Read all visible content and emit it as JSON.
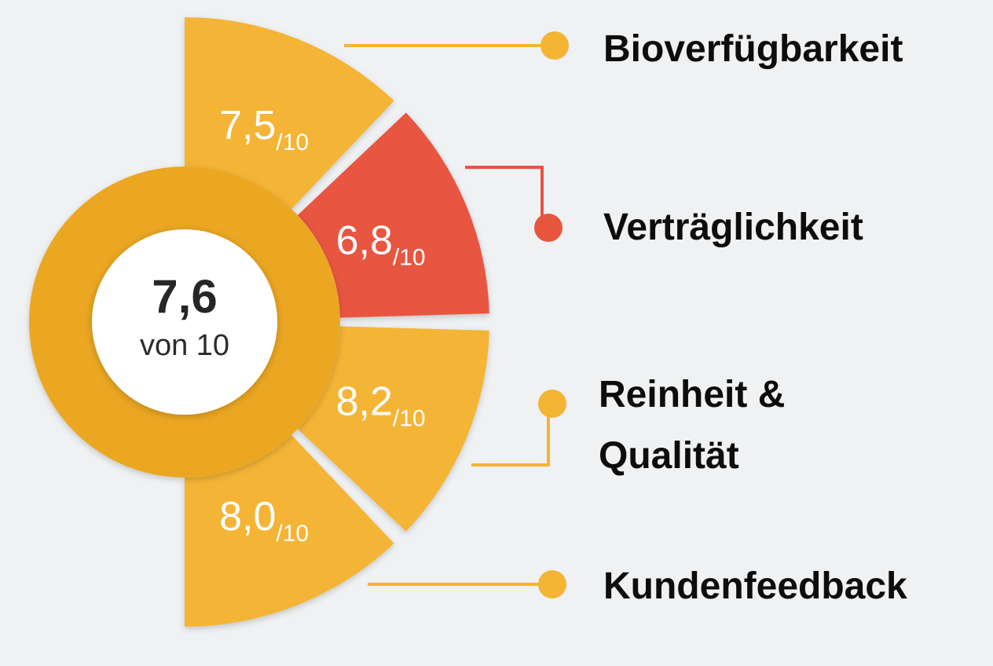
{
  "chart_data": {
    "type": "pie",
    "overall": {
      "value": "7,6",
      "subtitle": "von 10",
      "numeric": 7.6,
      "max": 10
    },
    "max_score": 10,
    "denominator_label": "/10",
    "segments": [
      {
        "category": "Bioverfügbarkeit",
        "value": 7.5,
        "value_label": "7,5",
        "color": "#f4b434"
      },
      {
        "category": "Verträglichkeit",
        "value": 6.8,
        "value_label": "6,8",
        "color": "#e8553f"
      },
      {
        "category": "Reinheit & Qualität",
        "label_lines": [
          "Reinheit &",
          "Qualität"
        ],
        "value": 8.2,
        "value_label": "8,2",
        "color": "#f4b434"
      },
      {
        "category": "Kundenfeedback",
        "value": 8.0,
        "value_label": "8,0",
        "color": "#f4b434"
      }
    ],
    "ring_color": "#eba722",
    "center_fill": "#ffffff"
  }
}
